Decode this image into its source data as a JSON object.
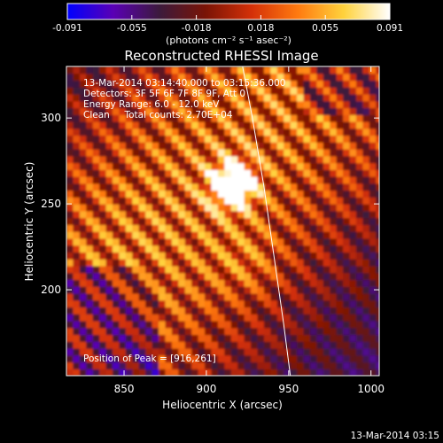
{
  "chart_data": {
    "type": "heatmap",
    "title": "Reconstructed RHESSI Image",
    "xlabel": "Heliocentric X (arcsec)",
    "ylabel": "Heliocentric Y (arcsec)",
    "xlim": [
      815,
      1005
    ],
    "ylim": [
      150,
      330
    ],
    "xticks": [
      850,
      900,
      950,
      1000
    ],
    "yticks": [
      200,
      250,
      300
    ],
    "colorbar": {
      "min": -0.091,
      "max": 0.091,
      "ticks": [
        "-0.091",
        "-0.055",
        "-0.018",
        "0.018",
        "0.055",
        "0.091"
      ],
      "units": "(photons cm⁻² s⁻¹ asec⁻²)",
      "colormap": [
        "#0000ff",
        "#5a00b4",
        "#3c1a3c",
        "#7a1406",
        "#d43008",
        "#ff7a10",
        "#ffd23c",
        "#ffffff"
      ]
    },
    "annotations": [
      "13-Mar-2014 03:14:40.000 to 03:15:36.000",
      "Detectors: 3F 5F 6F 7F 8F 9F, Att 0",
      "Energy Range: 6.0 - 12.0 keV",
      "Clean     Total counts: 2.70E+04"
    ],
    "peak_label": "Position of Peak = [916,261]",
    "peak": [
      916,
      261
    ],
    "limb": [
      [
        922,
        330
      ],
      [
        928,
        300
      ],
      [
        935,
        260
      ],
      [
        941,
        220
      ],
      [
        947,
        180
      ],
      [
        951,
        150
      ]
    ],
    "timestamp": "13-Mar-2014 03:15"
  }
}
